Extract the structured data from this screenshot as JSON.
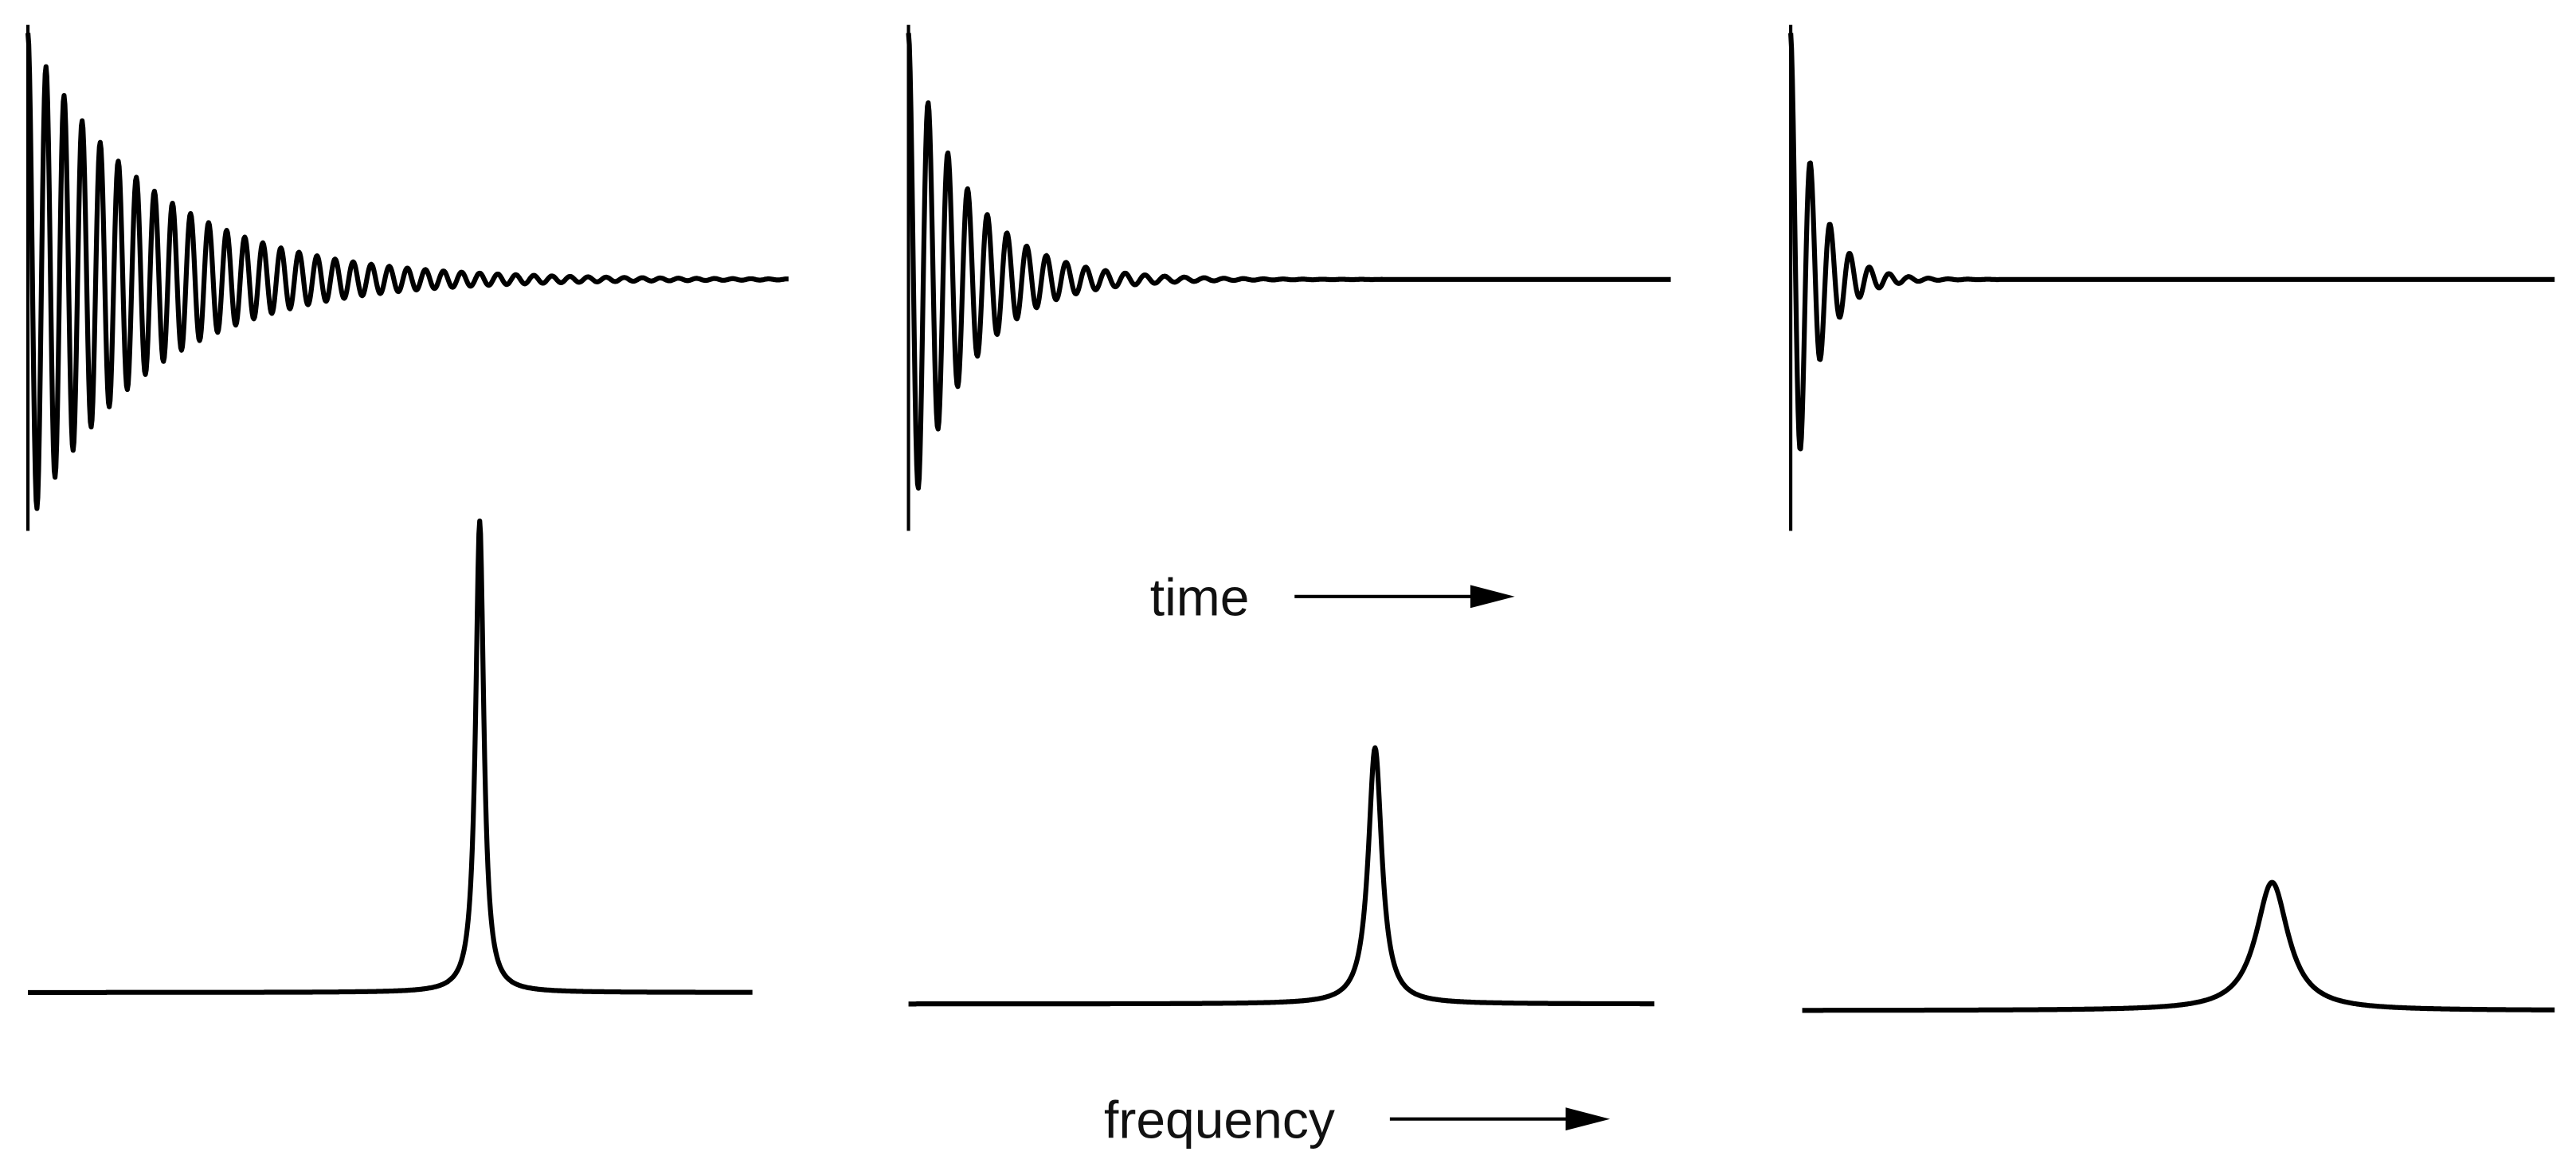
{
  "labels": {
    "time": "time",
    "frequency": "frequency"
  }
}
